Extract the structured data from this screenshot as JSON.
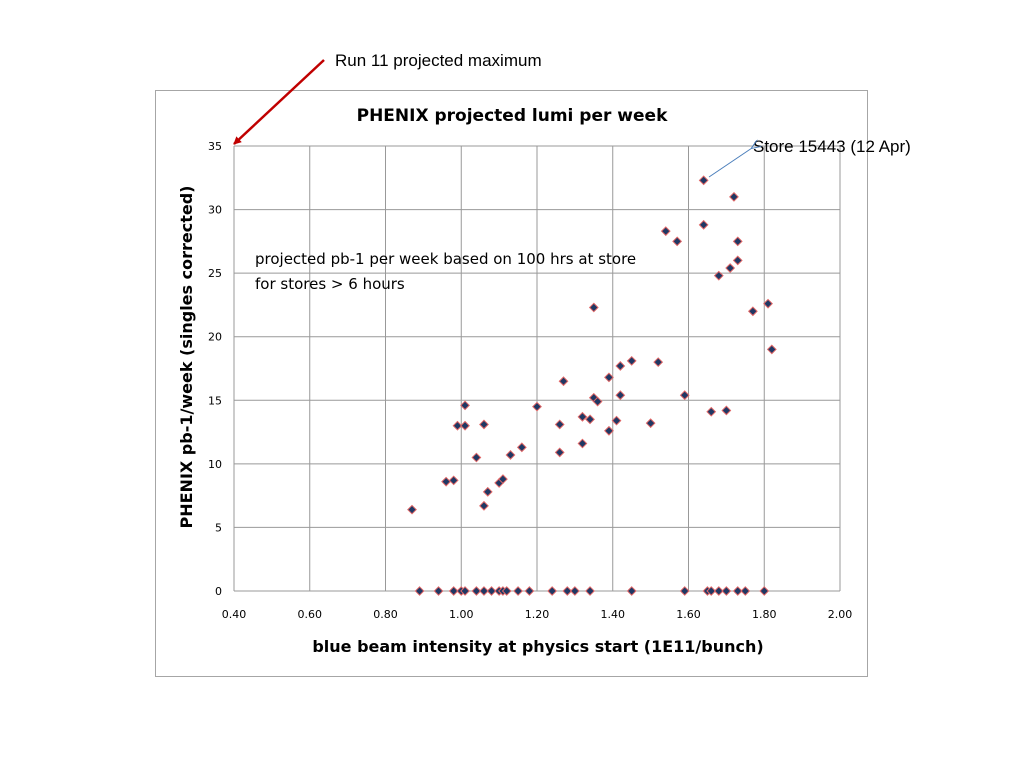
{
  "annotations": {
    "run11": "Run 11 projected maximum",
    "store": "Store 15443 (12 Apr)",
    "note_line1": "projected pb-1 per week based on 100 hrs at store",
    "note_line2": "for stores > 6 hours"
  },
  "colors": {
    "run11_arrow": "#c00000",
    "store_arrow": "#4a7ebb",
    "marker_fill": "#1f3864",
    "marker_edge": "#e06666",
    "grid": "#999999"
  },
  "chart_data": {
    "type": "scatter",
    "title": "PHENIX projected lumi per week",
    "xlabel": "blue beam intensity at physics start (1E11/bunch)",
    "ylabel": "PHENIX pb-1/week (singles corrected)",
    "xlim": [
      0.4,
      2.0
    ],
    "ylim": [
      0,
      35
    ],
    "xticks": [
      "0.40",
      "0.60",
      "0.80",
      "1.00",
      "1.20",
      "1.40",
      "1.60",
      "1.80",
      "2.00"
    ],
    "yticks": [
      "0",
      "5",
      "10",
      "15",
      "20",
      "25",
      "30",
      "35"
    ],
    "grid": true,
    "legend": "none",
    "marker": "diamond",
    "points": [
      [
        0.87,
        6.4
      ],
      [
        0.96,
        8.6
      ],
      [
        0.98,
        8.7
      ],
      [
        0.99,
        13.0
      ],
      [
        1.01,
        14.6
      ],
      [
        1.01,
        13.0
      ],
      [
        1.04,
        10.5
      ],
      [
        1.06,
        13.1
      ],
      [
        1.06,
        6.7
      ],
      [
        1.07,
        7.8
      ],
      [
        1.1,
        8.5
      ],
      [
        1.11,
        8.8
      ],
      [
        1.13,
        10.7
      ],
      [
        1.16,
        11.3
      ],
      [
        1.2,
        14.5
      ],
      [
        1.26,
        10.9
      ],
      [
        1.26,
        13.1
      ],
      [
        1.27,
        16.5
      ],
      [
        1.32,
        13.7
      ],
      [
        1.32,
        11.6
      ],
      [
        1.34,
        13.5
      ],
      [
        1.35,
        22.3
      ],
      [
        1.35,
        15.2
      ],
      [
        1.36,
        14.9
      ],
      [
        1.39,
        12.6
      ],
      [
        1.39,
        16.8
      ],
      [
        1.41,
        13.4
      ],
      [
        1.42,
        17.7
      ],
      [
        1.42,
        15.4
      ],
      [
        1.45,
        18.1
      ],
      [
        1.5,
        13.2
      ],
      [
        1.52,
        18.0
      ],
      [
        1.54,
        28.3
      ],
      [
        1.57,
        27.5
      ],
      [
        1.59,
        15.4
      ],
      [
        1.64,
        28.8
      ],
      [
        1.64,
        32.3
      ],
      [
        1.66,
        14.1
      ],
      [
        1.68,
        24.8
      ],
      [
        1.7,
        14.2
      ],
      [
        1.71,
        25.4
      ],
      [
        1.72,
        31.0
      ],
      [
        1.73,
        26.0
      ],
      [
        1.73,
        27.5
      ],
      [
        1.77,
        22.0
      ],
      [
        1.81,
        22.6
      ],
      [
        1.82,
        19.0
      ],
      [
        0.89,
        0
      ],
      [
        0.94,
        0
      ],
      [
        0.98,
        0
      ],
      [
        1.0,
        0
      ],
      [
        1.01,
        0
      ],
      [
        1.04,
        0
      ],
      [
        1.06,
        0
      ],
      [
        1.08,
        0
      ],
      [
        1.1,
        0
      ],
      [
        1.11,
        0
      ],
      [
        1.12,
        0
      ],
      [
        1.15,
        0
      ],
      [
        1.18,
        0
      ],
      [
        1.24,
        0
      ],
      [
        1.28,
        0
      ],
      [
        1.3,
        0
      ],
      [
        1.34,
        0
      ],
      [
        1.45,
        0
      ],
      [
        1.59,
        0
      ],
      [
        1.65,
        0
      ],
      [
        1.66,
        0
      ],
      [
        1.68,
        0
      ],
      [
        1.7,
        0
      ],
      [
        1.73,
        0
      ],
      [
        1.75,
        0
      ],
      [
        1.8,
        0
      ]
    ]
  }
}
